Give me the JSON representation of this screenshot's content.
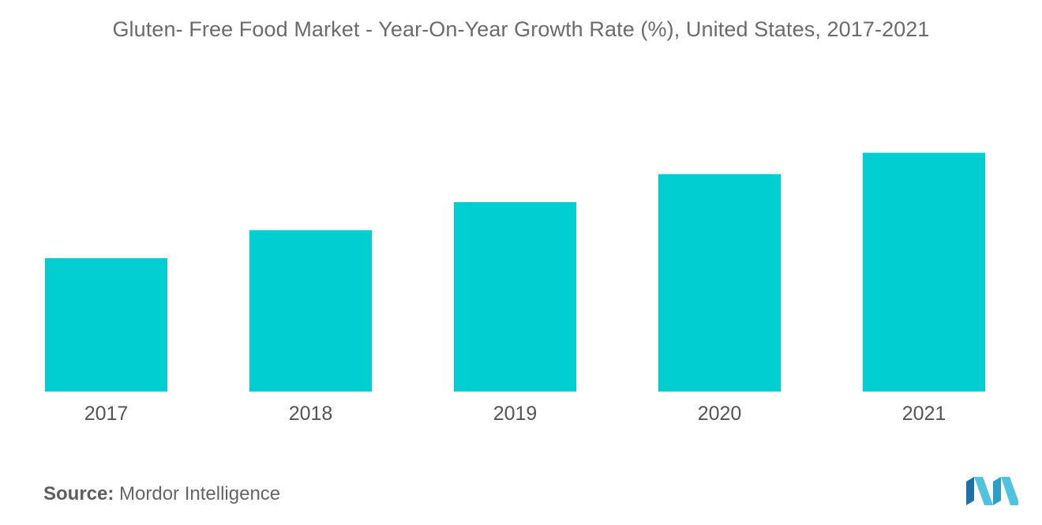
{
  "chart_data": {
    "type": "bar",
    "title": "Gluten- Free Food Market - Year-On-Year Growth Rate (%), United States, 2017-2021",
    "categories": [
      "2017",
      "2018",
      "2019",
      "2020",
      "2021"
    ],
    "values": [
      1.0,
      1.21,
      1.42,
      1.63,
      1.79
    ],
    "xlabel": "",
    "ylabel": "",
    "ylim": [
      0,
      2.0
    ],
    "grid": false,
    "legend": "none",
    "colors": {
      "bar": "#00CED1"
    }
  },
  "source": {
    "label": "Source:",
    "name": "Mordor Intelligence"
  },
  "logo": {
    "icon": "mordor-intelligence-logo-icon",
    "colors": [
      "#1f6fa8",
      "#4fc3e0",
      "#2a9fc9"
    ]
  }
}
